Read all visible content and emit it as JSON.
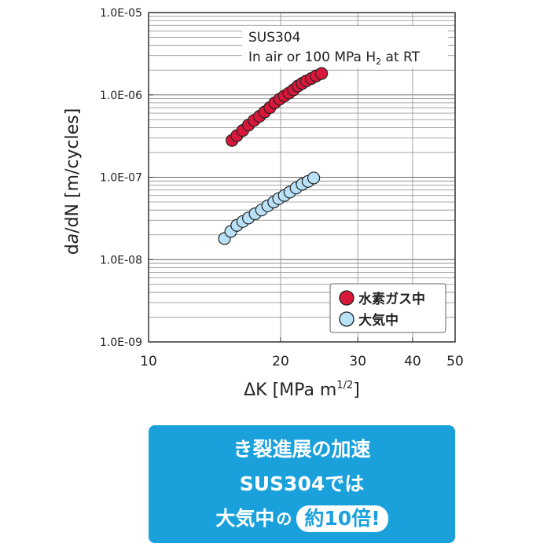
{
  "chart_data": {
    "type": "scatter",
    "xscale": "log",
    "yscale": "log",
    "xlim": [
      10,
      50
    ],
    "ylim": [
      1e-09,
      1e-05
    ],
    "xticks": [
      10,
      20,
      30,
      40,
      50
    ],
    "xtick_labels": [
      "10",
      "20",
      "30",
      "40",
      "50"
    ],
    "yticks": [
      1e-09,
      1e-08,
      1e-07,
      1e-06,
      1e-05
    ],
    "ytick_labels": [
      "1.0E-09",
      "1.0E-08",
      "1.0E-07",
      "1.0E-06",
      "1.0E-05"
    ],
    "xlabel": "ΔK [MPa m1/2]",
    "ylabel": "da/dN [m/cycles]",
    "annotation": [
      "SUS304",
      "In air or 100 MPa H2 at RT"
    ],
    "grid": true,
    "legend_position": "bottom-right",
    "series": [
      {
        "name": "水素ガス中",
        "color": "#d8173a",
        "points": [
          [
            15.5,
            2.8e-07
          ],
          [
            15.9,
            3.2e-07
          ],
          [
            16.4,
            3.7e-07
          ],
          [
            16.9,
            4.3e-07
          ],
          [
            17.4,
            4.9e-07
          ],
          [
            17.9,
            5.5e-07
          ],
          [
            18.4,
            6.2e-07
          ],
          [
            18.9,
            7e-07
          ],
          [
            19.4,
            8e-07
          ],
          [
            19.9,
            8.9e-07
          ],
          [
            20.4,
            9.7e-07
          ],
          [
            20.9,
            1.05e-06
          ],
          [
            21.4,
            1.15e-06
          ],
          [
            21.9,
            1.28e-06
          ],
          [
            22.4,
            1.38e-06
          ],
          [
            22.9,
            1.48e-06
          ],
          [
            23.5,
            1.58e-06
          ],
          [
            24.1,
            1.7e-06
          ],
          [
            24.8,
            1.82e-06
          ]
        ]
      },
      {
        "name": "大気中",
        "color": "#b9e1f7",
        "points": [
          [
            14.9,
            1.8e-08
          ],
          [
            15.4,
            2.2e-08
          ],
          [
            15.9,
            2.6e-08
          ],
          [
            16.4,
            2.9e-08
          ],
          [
            16.9,
            3.2e-08
          ],
          [
            17.5,
            3.6e-08
          ],
          [
            18.1,
            4e-08
          ],
          [
            18.7,
            4.5e-08
          ],
          [
            19.3,
            5e-08
          ],
          [
            19.8,
            5.5e-08
          ],
          [
            20.4,
            6e-08
          ],
          [
            21.0,
            6.6e-08
          ],
          [
            21.7,
            7.4e-08
          ],
          [
            22.4,
            8.2e-08
          ],
          [
            23.1,
            8.9e-08
          ],
          [
            23.8,
            9.8e-08
          ]
        ]
      }
    ]
  },
  "chart_text": {
    "annotation_line1": "SUS304",
    "annotation_line2_pre": "In air or 100 MPa H",
    "annotation_line2_sub": "2",
    "annotation_line2_post": " at RT",
    "ylabel_d": "d",
    "ylabel_a": "a",
    "ylabel_rest": "/dN [m/cycles]",
    "xlabel_main": "ΔK [MPa m",
    "xlabel_sup": "1/2",
    "xlabel_close": "]"
  },
  "banner": {
    "line1": "き裂進展の加速",
    "line2": "SUS304では",
    "line3_pre": "大気中",
    "line3_no": "の",
    "line3_pill": "約10倍!"
  }
}
